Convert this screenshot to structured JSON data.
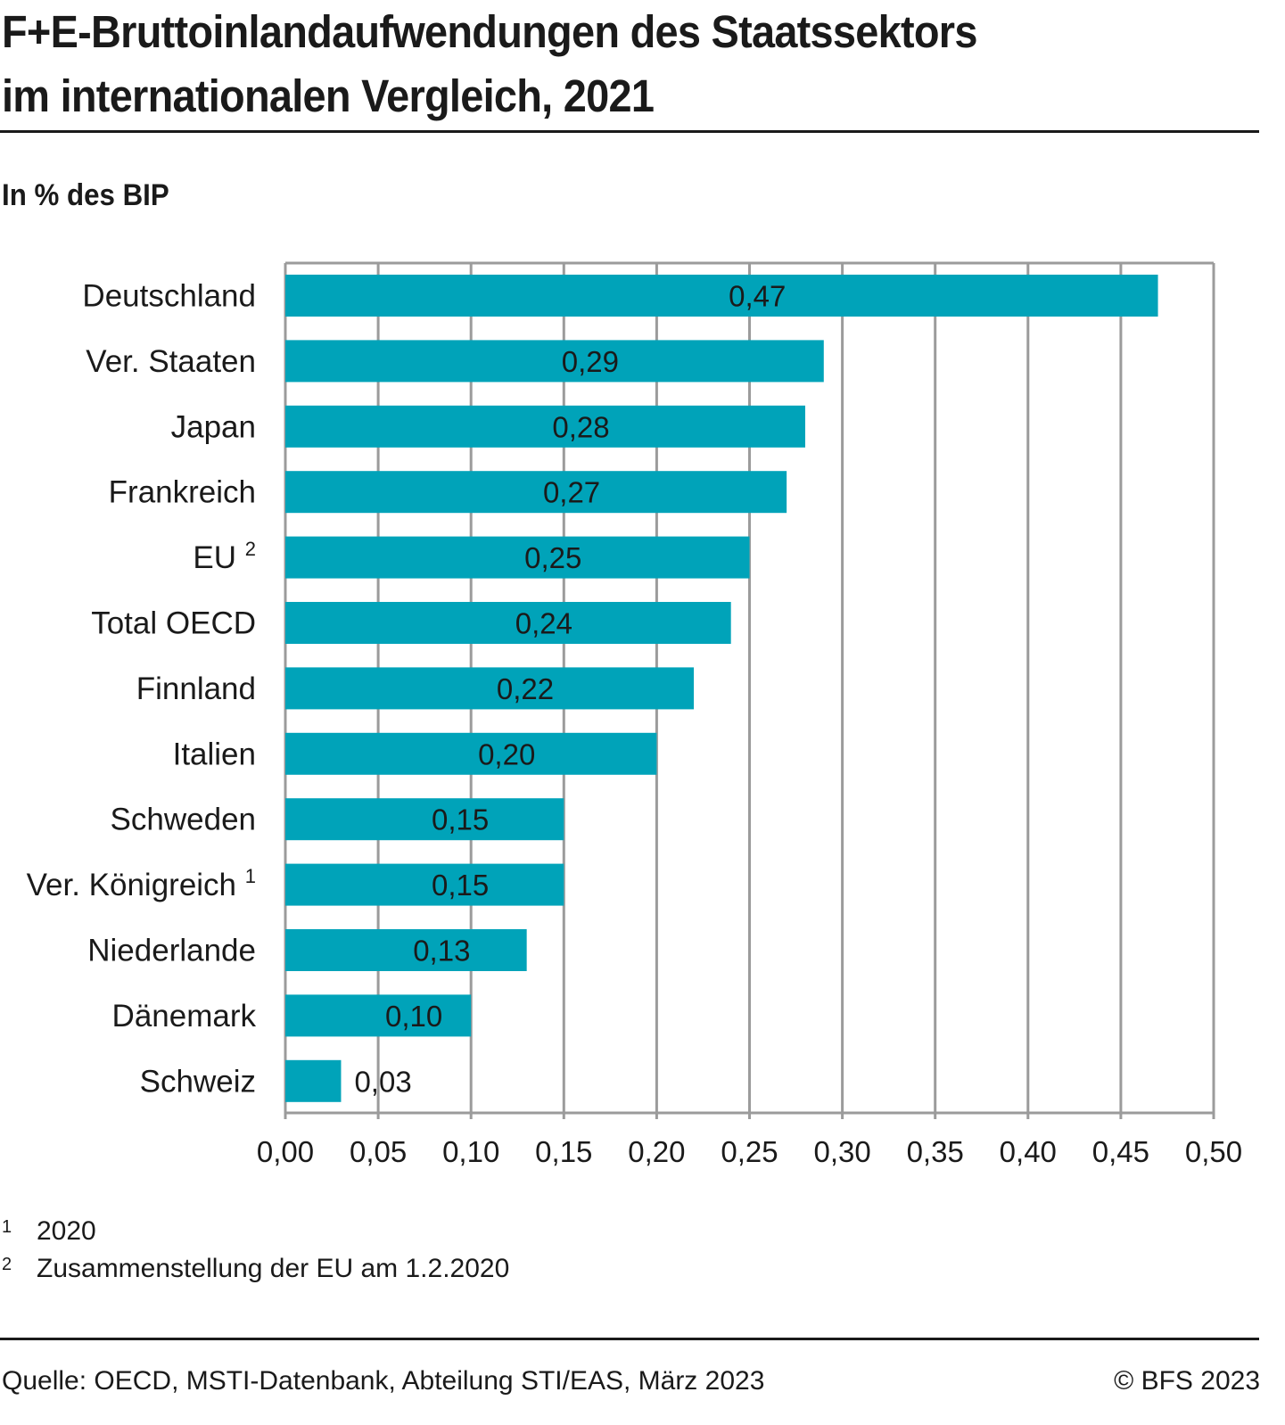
{
  "title_lines": [
    "F+E-Bruttoinlandaufwendungen des Staatssektors",
    "im internationalen Vergleich, 2021"
  ],
  "colors": {
    "bar": "#00A3B9",
    "grid": "#9B9B9B",
    "text": "#1A1A1A",
    "rule": "#1A1A1A"
  },
  "chart_data": {
    "type": "bar",
    "orientation": "horizontal",
    "title": "F+E-Bruttoinlandaufwendungen des Staatssektors im internationalen Vergleich, 2021",
    "subtitle": "In % des BIP",
    "categories": [
      "Deutschland",
      "Ver. Staaten",
      "Japan",
      "Frankreich",
      "EU",
      "Total OECD",
      "Finnland",
      "Italien",
      "Schweden",
      "Ver. Königreich",
      "Niederlande",
      "Dänemark",
      "Schweiz"
    ],
    "category_footnotes": [
      "",
      "",
      "",
      "",
      "2",
      "",
      "",
      "",
      "",
      "1",
      "",
      "",
      ""
    ],
    "values": [
      0.47,
      0.29,
      0.28,
      0.27,
      0.25,
      0.24,
      0.22,
      0.2,
      0.15,
      0.15,
      0.13,
      0.1,
      0.03
    ],
    "value_labels": [
      "0,47",
      "0,29",
      "0,28",
      "0,27",
      "0,25",
      "0,24",
      "0,22",
      "0,20",
      "0,15",
      "0,15",
      "0,13",
      "0,10",
      "0,03"
    ],
    "xlim": [
      0,
      0.5
    ],
    "xticks": [
      0,
      0.05,
      0.1,
      0.15,
      0.2,
      0.25,
      0.3,
      0.35,
      0.4,
      0.45,
      0.5
    ],
    "xtick_labels": [
      "0,00",
      "0,05",
      "0,10",
      "0,15",
      "0,20",
      "0,25",
      "0,30",
      "0,35",
      "0,40",
      "0,45",
      "0,50"
    ],
    "xlabel": "",
    "ylabel": "",
    "grid": true,
    "legend": "none"
  },
  "footnotes": [
    {
      "mark": "1",
      "text": "2020"
    },
    {
      "mark": "2",
      "text": "Zusammenstellung der EU am 1.2.2020"
    }
  ],
  "source": "Quelle: OECD, MSTI-Datenbank, Abteilung STI/EAS, März 2023",
  "copyright": "© BFS 2023"
}
